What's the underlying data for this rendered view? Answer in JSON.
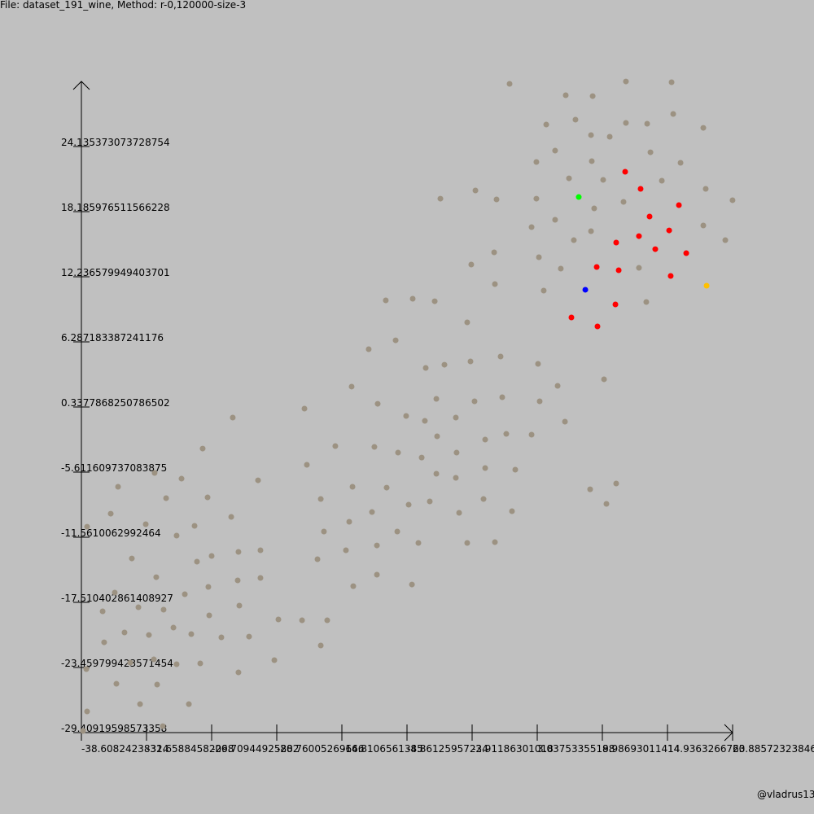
{
  "chart_data": {
    "type": "scatter",
    "title": "File: dataset_191_wine, Method: r-0,120000-size-3",
    "credit": "@vladrus13",
    "xlim": [
      -38.60824238314,
      20.88572323846
    ],
    "ylim": [
      -29.40919598573358,
      30.08476964
    ],
    "xticks": [
      -38.60824238314,
      -32.65884582098,
      -26.70944925882,
      -20.76005269666,
      -14.8106561345,
      -8.86125957234,
      -2.91186301018,
      3.03753355198,
      8.98693011414,
      14.9363266763,
      20.88572323846
    ],
    "yticks": [
      -29.40919598573358,
      -23.459799423571454,
      -17.510402861408927,
      -11.5610062992464,
      -5.611609737083875,
      0.3377868250786502,
      6.287183387241176,
      12.236579949403701,
      18.185976511566228,
      24.135373073728754
    ],
    "series": [
      {
        "color": "#9c9282",
        "x": [
          0.51,
          5.64,
          8.1,
          11.14,
          15.31,
          3.86,
          6.53,
          7.95,
          9.66,
          11.14,
          13.08,
          15.46,
          18.21,
          4.67,
          8.02,
          13.38,
          2.96,
          16.13,
          5.94,
          9.06,
          14.42,
          18.43,
          -5.81,
          -2.61,
          -0.68,
          2.96,
          8.24,
          10.92,
          20.88,
          2.52,
          4.67,
          7.95,
          18.21,
          6.38,
          20.22,
          -0.9,
          3.19,
          5.19,
          12.33,
          -2.99,
          -0.83,
          3.63,
          13.0,
          -10.8,
          -8.34,
          -6.33,
          -3.36,
          -12.36,
          -9.9,
          -7.15,
          -5.44,
          -3.06,
          -0.31,
          3.11,
          9.14,
          4.9,
          -13.92,
          -11.54,
          -6.18,
          -2.69,
          -0.16,
          3.26,
          -8.94,
          -7.23,
          -4.4,
          5.57,
          -18.23,
          -24.78,
          -15.41,
          -11.84,
          -9.68,
          -6.11,
          -1.72,
          0.21,
          2.52,
          -7.52,
          -4.33,
          -18.01,
          -1.72,
          1.03,
          -6.18,
          -4.4,
          7.87,
          10.25,
          9.36,
          -13.84,
          -10.72,
          -16.74,
          -8.71,
          -6.78,
          -1.87,
          -12.06,
          -4.1,
          0.73,
          -14.14,
          -16.45,
          -9.75,
          -7.82,
          -3.36,
          -0.83,
          -11.61,
          -14.44,
          -17.04,
          -13.77,
          -11.61,
          -8.41,
          -27.53,
          -22.47,
          -35.26,
          -31.92,
          -29.46,
          -30.87,
          -27.08,
          -35.93,
          -24.92,
          -38.09,
          -32.73,
          -28.27,
          -29.91,
          -34.0,
          -26.71,
          -24.26,
          -22.25,
          -28.05,
          -31.77,
          -24.33,
          -22.25,
          -29.16,
          -27.01,
          -35.56,
          -31.1,
          -33.4,
          -36.67,
          -24.18,
          -26.93,
          -20.61,
          -18.45,
          -16.15,
          -30.2,
          -34.67,
          -32.44,
          -28.57,
          -25.82,
          -23.29,
          -36.53,
          -16.74,
          -34.15,
          -31.99,
          -29.91,
          -27.75,
          -20.98,
          -38.16,
          -24.26,
          -35.41,
          -31.69,
          -33.25,
          -28.79,
          -38.09,
          -31.17,
          -38.46
        ],
        "values": [
          29.86,
          28.82,
          28.74,
          30.08,
          30.01,
          26.14,
          26.59,
          25.18,
          25.03,
          26.29,
          26.22,
          27.11,
          25.84,
          23.76,
          22.8,
          23.61,
          22.72,
          22.65,
          21.23,
          21.09,
          21.01,
          20.27,
          19.37,
          20.12,
          19.3,
          19.37,
          18.48,
          19.08,
          19.23,
          16.77,
          17.44,
          16.4,
          16.92,
          15.58,
          15.58,
          14.47,
          14.02,
          12.98,
          13.05,
          13.35,
          11.57,
          10.97,
          9.93,
          10.08,
          10.23,
          10.0,
          8.07,
          5.62,
          6.43,
          3.91,
          4.2,
          4.5,
          4.95,
          4.28,
          2.87,
          2.27,
          2.2,
          0.63,
          1.08,
          0.86,
          1.23,
          0.86,
          -0.48,
          -0.93,
          -0.63,
          -1.0,
          0.19,
          -0.63,
          -3.23,
          -3.31,
          -3.83,
          -2.34,
          -2.64,
          -2.12,
          -2.19,
          -4.28,
          -3.83,
          -4.94,
          -5.24,
          -5.39,
          -5.76,
          -6.13,
          -7.18,
          -6.65,
          -8.51,
          -6.95,
          -7.03,
          -8.07,
          -8.59,
          -8.29,
          -8.07,
          -9.26,
          -9.33,
          -9.18,
          -10.15,
          -11.04,
          -11.04,
          -12.08,
          -12.08,
          -12.01,
          -12.31,
          -12.75,
          -13.57,
          -16.03,
          -14.98,
          -15.88,
          -3.46,
          -6.36,
          -6.95,
          -5.69,
          -6.21,
          -7.99,
          -7.92,
          -9.41,
          -9.7,
          -10.6,
          -10.37,
          -10.52,
          -11.41,
          -13.5,
          -13.27,
          -12.9,
          -12.75,
          -13.79,
          -15.21,
          -15.5,
          -15.28,
          -16.77,
          -16.1,
          -16.62,
          -18.18,
          -17.96,
          -18.33,
          -17.81,
          -18.7,
          -19.07,
          -19.15,
          -19.15,
          -19.82,
          -20.26,
          -20.49,
          -20.41,
          -20.71,
          -20.64,
          -21.16,
          -21.45,
          -23.02,
          -22.72,
          -23.16,
          -23.09,
          -22.79,
          -23.61,
          -23.91,
          -24.95,
          -25.02,
          -26.81,
          -26.81,
          -27.48,
          -28.82,
          -29.26
        ]
      },
      {
        "color": "#ff0000",
        "x": [
          11.07,
          12.48,
          15.98,
          13.3,
          10.25,
          12.33,
          15.09,
          13.82,
          16.65,
          8.47,
          10.48,
          15.23,
          10.18,
          6.16,
          8.54
        ],
        "values": [
          21.83,
          20.27,
          18.78,
          17.74,
          15.36,
          15.95,
          16.47,
          14.76,
          14.39,
          13.13,
          12.83,
          12.31,
          9.71,
          8.52,
          7.7
        ]
      },
      {
        "color": "#00ff00",
        "x": [
          6.83
        ],
        "values": [
          19.52
        ]
      },
      {
        "color": "#0000ff",
        "x": [
          7.43
        ],
        "values": [
          11.05
        ]
      },
      {
        "color": "#ffc000",
        "x": [
          18.51
        ],
        "values": [
          11.42
        ]
      }
    ]
  }
}
